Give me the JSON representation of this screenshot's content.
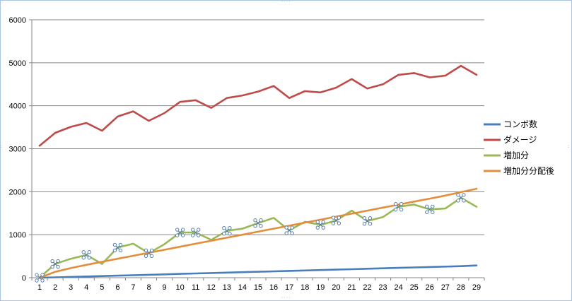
{
  "chart_data": {
    "type": "line",
    "title": "",
    "xlabel": "",
    "ylabel": "",
    "ylim": [
      0,
      6000
    ],
    "y_ticks": [
      0,
      1000,
      2000,
      3000,
      4000,
      5000,
      6000
    ],
    "grid": "horizontal",
    "legend_position": "right",
    "categories": [
      "1",
      "2",
      "3",
      "4",
      "5",
      "6",
      "7",
      "8",
      "9",
      "10",
      "11",
      "12",
      "13",
      "14",
      "15",
      "16",
      "17",
      "18",
      "19",
      "20",
      "21",
      "22",
      "23",
      "24",
      "25",
      "26",
      "27",
      "28",
      "29"
    ],
    "series": [
      {
        "name": "コンボ数",
        "color": "#4a7ebb",
        "values": [
          0,
          8,
          18,
          28,
          38,
          48,
          58,
          68,
          78,
          88,
          98,
          108,
          118,
          128,
          138,
          148,
          158,
          168,
          178,
          188,
          198,
          208,
          218,
          228,
          238,
          248,
          258,
          268,
          285
        ]
      },
      {
        "name": "ダメージ",
        "color": "#be4b48",
        "values": [
          3070,
          3370,
          3510,
          3600,
          3420,
          3750,
          3870,
          3650,
          3830,
          4090,
          4130,
          3950,
          4180,
          4240,
          4330,
          4460,
          4180,
          4340,
          4310,
          4420,
          4620,
          4400,
          4500,
          4720,
          4760,
          4660,
          4700,
          4930,
          4720
        ]
      },
      {
        "name": "増加分",
        "color": "#98b954",
        "values": [
          0,
          320,
          440,
          530,
          320,
          700,
          790,
          570,
          780,
          1050,
          1050,
          880,
          1090,
          1140,
          1270,
          1390,
          1100,
          1300,
          1230,
          1330,
          1560,
          1320,
          1410,
          1650,
          1700,
          1590,
          1610,
          1860,
          1650
        ],
        "marker_indices": [
          0,
          1,
          3,
          5,
          7,
          9,
          10,
          12,
          14,
          16,
          18,
          19,
          21,
          23,
          25,
          27
        ]
      },
      {
        "name": "増加分分配後",
        "color": "#e38e3c",
        "values": [
          0,
          137,
          224,
          300,
          370,
          440,
          510,
          580,
          650,
          720,
          790,
          860,
          930,
          1000,
          1070,
          1140,
          1210,
          1280,
          1350,
          1420,
          1490,
          1560,
          1630,
          1700,
          1770,
          1840,
          1910,
          1990,
          2070
        ]
      }
    ]
  }
}
